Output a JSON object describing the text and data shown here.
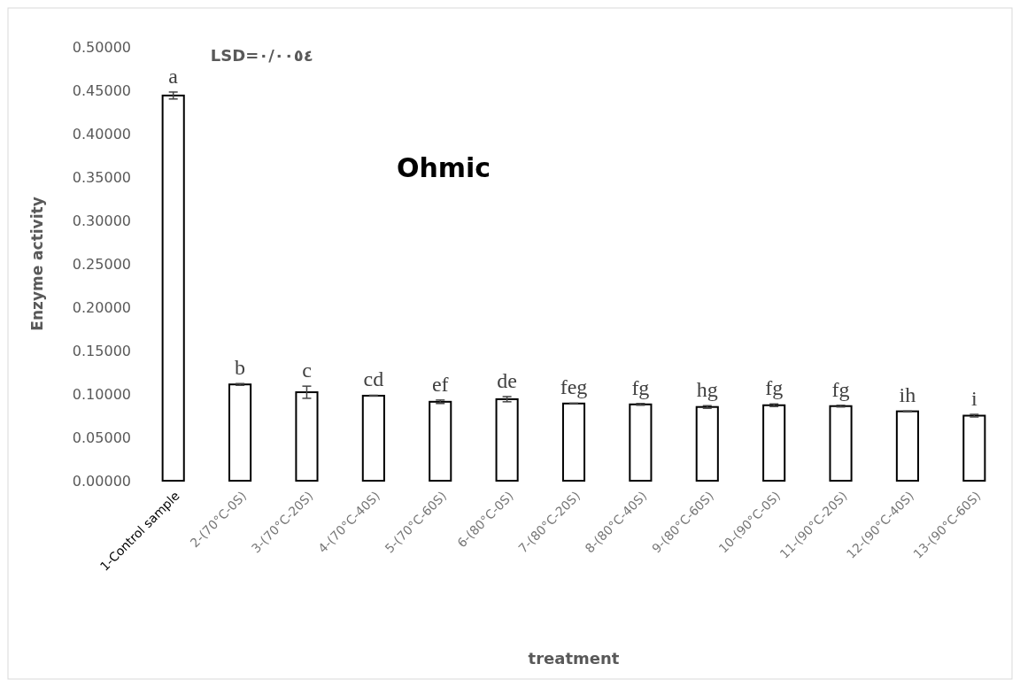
{
  "chart_data": {
    "type": "bar",
    "title": "Ohmic",
    "xlabel": "treatment",
    "ylabel": "Enzyme activity",
    "categories": [
      "1-Control sample",
      "2-(70°C-0S)",
      "3-(70°C-20S)",
      "4-(70°C-40S)",
      "5-(70°C-60S)",
      "6-(80°C-0S)",
      "7-(80°C-20S)",
      "8-(80°C-40S)",
      "9-(80°C-60S)",
      "10-(90°C-0S)",
      "11-(90°C-20S)",
      "12-(90°C-40S)",
      "13-(90°C-60S)"
    ],
    "values": [
      0.444,
      0.111,
      0.102,
      0.098,
      0.091,
      0.094,
      0.089,
      0.088,
      0.085,
      0.087,
      0.086,
      0.08,
      0.075
    ],
    "errors": [
      0.004,
      0.001,
      0.007,
      0.0005,
      0.002,
      0.003,
      0.0003,
      0.001,
      0.0015,
      0.0015,
      0.001,
      0.0003,
      0.0015
    ],
    "color": "#ffffff",
    "ylim": [
      0,
      0.5
    ],
    "yticks": [
      {
        "value": 0,
        "label": "0.00000"
      },
      {
        "value": 0.05,
        "label": "0.05000"
      },
      {
        "value": 0.1,
        "label": "0.10000"
      },
      {
        "value": 0.15,
        "label": "0.15000"
      },
      {
        "value": 0.2,
        "label": "0.20000"
      },
      {
        "value": 0.25,
        "label": "0.25000"
      },
      {
        "value": 0.3,
        "label": "0.30000"
      },
      {
        "value": 0.35,
        "label": "0.35000"
      },
      {
        "value": 0.4,
        "label": "0.40000"
      },
      {
        "value": 0.45,
        "label": "0.45000"
      },
      {
        "value": 0.5,
        "label": "0.50000"
      }
    ],
    "annotations": [
      "LSD=٠/٠٠٥٤",
      {
        "text": "a",
        "x": "1-Control sample",
        "y": 0.448
      },
      {
        "text": "b",
        "x": "2-(70°C-0S)",
        "y": 0.112
      },
      {
        "text": "c",
        "x": "3-(70°C-20S)",
        "y": 0.109
      },
      {
        "text": "cd",
        "x": "4-(70°C-40S)",
        "y": 0.0985
      },
      {
        "text": "ef",
        "x": "5-(70°C-60S)",
        "y": 0.093
      },
      {
        "text": "de",
        "x": "6-(80°C-0S)",
        "y": 0.097
      },
      {
        "text": "feg",
        "x": "7-(80°C-20S)",
        "y": 0.0893
      },
      {
        "text": "fg",
        "x": "8-(80°C-40S)",
        "y": 0.089
      },
      {
        "text": "hg",
        "x": "9-(80°C-60S)",
        "y": 0.0865
      },
      {
        "text": "fg",
        "x": "10-(90°C-0S)",
        "y": 0.0885
      },
      {
        "text": "fg",
        "x": "11-(90°C-20S)",
        "y": 0.087
      },
      {
        "text": "ih",
        "x": "12-(90°C-40S)",
        "y": 0.0803
      },
      {
        "text": "i",
        "x": "13-(90°C-60S)",
        "y": 0.0765
      }
    ],
    "grid": false
  }
}
